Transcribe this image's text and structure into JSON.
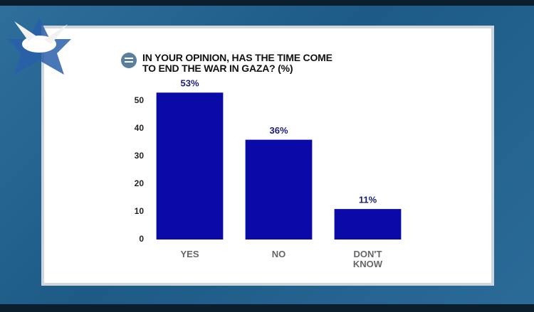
{
  "chart_data": {
    "type": "bar",
    "title": "IN YOUR OPINION, HAS THE TIME COME\nTO END THE WAR IN GAZA? (%)",
    "categories": [
      "YES",
      "NO",
      "DON'T KNOW"
    ],
    "values": [
      53,
      36,
      11
    ],
    "value_labels": [
      "53%",
      "36%",
      "11%"
    ],
    "color": "#0a0aa8",
    "ylim": [
      0,
      55
    ],
    "yticks": [
      0,
      10,
      20,
      30,
      40,
      50
    ],
    "grid": false
  }
}
